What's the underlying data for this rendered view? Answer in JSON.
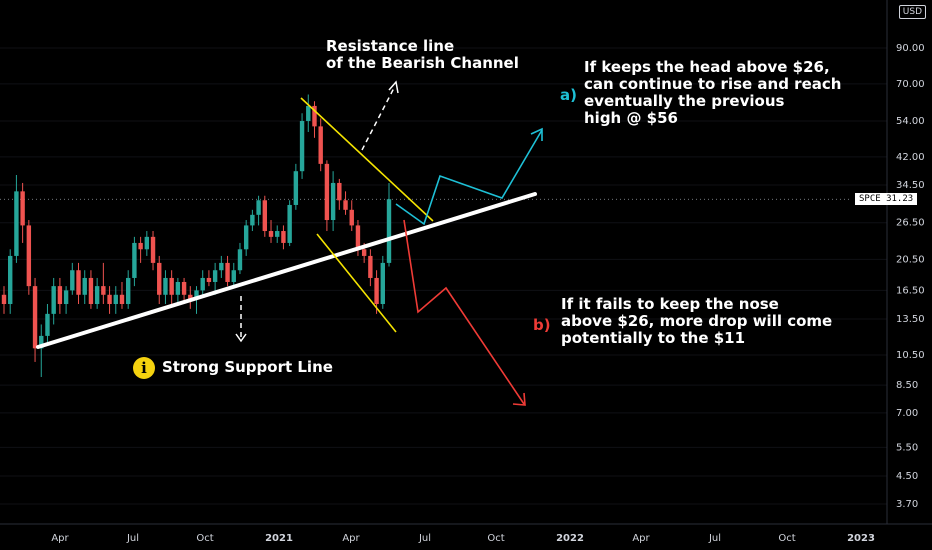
{
  "chart_data": {
    "type": "candlestick",
    "ticker": "SPCE",
    "last_price": "31.23",
    "currency": "USD",
    "price_scale": "log",
    "y_ticks": [
      "90.00",
      "70.00",
      "54.00",
      "42.00",
      "34.50",
      "26.50",
      "20.50",
      "16.50",
      "13.50",
      "10.50",
      "8.50",
      "7.00",
      "5.50",
      "4.50",
      "3.70"
    ],
    "x_ticks": [
      "Apr",
      "Jul",
      "Oct",
      "2021",
      "Apr",
      "Jul",
      "Oct",
      "2022",
      "Apr",
      "Jul",
      "Oct",
      "2023"
    ],
    "candles": [
      {
        "o": 16,
        "h": 17,
        "l": 14,
        "c": 15
      },
      {
        "o": 15,
        "h": 22,
        "l": 14,
        "c": 21
      },
      {
        "o": 21,
        "h": 37,
        "l": 20,
        "c": 33
      },
      {
        "o": 33,
        "h": 35,
        "l": 23,
        "c": 26
      },
      {
        "o": 26,
        "h": 27,
        "l": 16,
        "c": 17
      },
      {
        "o": 17,
        "h": 18,
        "l": 10,
        "c": 11
      },
      {
        "o": 11,
        "h": 13,
        "l": 9,
        "c": 12
      },
      {
        "o": 12,
        "h": 15,
        "l": 11.5,
        "c": 14
      },
      {
        "o": 14,
        "h": 18,
        "l": 13,
        "c": 17
      },
      {
        "o": 17,
        "h": 18,
        "l": 14,
        "c": 15
      },
      {
        "o": 15,
        "h": 17,
        "l": 14,
        "c": 16.5
      },
      {
        "o": 16.5,
        "h": 20,
        "l": 16,
        "c": 19
      },
      {
        "o": 19,
        "h": 20,
        "l": 15,
        "c": 16
      },
      {
        "o": 16,
        "h": 19,
        "l": 15,
        "c": 18
      },
      {
        "o": 18,
        "h": 19,
        "l": 14.5,
        "c": 15
      },
      {
        "o": 15,
        "h": 18,
        "l": 14.5,
        "c": 17
      },
      {
        "o": 17,
        "h": 20,
        "l": 15,
        "c": 16
      },
      {
        "o": 16,
        "h": 17,
        "l": 14,
        "c": 15
      },
      {
        "o": 15,
        "h": 17,
        "l": 14,
        "c": 16
      },
      {
        "o": 16,
        "h": 17.5,
        "l": 14.5,
        "c": 15
      },
      {
        "o": 15,
        "h": 19,
        "l": 14.5,
        "c": 18
      },
      {
        "o": 18,
        "h": 24,
        "l": 17,
        "c": 23
      },
      {
        "o": 23,
        "h": 24,
        "l": 20,
        "c": 22
      },
      {
        "o": 22,
        "h": 25,
        "l": 21,
        "c": 24
      },
      {
        "o": 24,
        "h": 25,
        "l": 19,
        "c": 20
      },
      {
        "o": 20,
        "h": 21,
        "l": 15,
        "c": 16
      },
      {
        "o": 16,
        "h": 19,
        "l": 15,
        "c": 18
      },
      {
        "o": 18,
        "h": 19,
        "l": 15,
        "c": 16
      },
      {
        "o": 16,
        "h": 18,
        "l": 15,
        "c": 17.5
      },
      {
        "o": 17.5,
        "h": 18,
        "l": 15,
        "c": 16
      },
      {
        "o": 16,
        "h": 17,
        "l": 14.5,
        "c": 15.5
      },
      {
        "o": 15.5,
        "h": 17,
        "l": 14,
        "c": 16.5
      },
      {
        "o": 16.5,
        "h": 19,
        "l": 16,
        "c": 18
      },
      {
        "o": 18,
        "h": 19,
        "l": 17,
        "c": 17.5
      },
      {
        "o": 17.5,
        "h": 20,
        "l": 16,
        "c": 19
      },
      {
        "o": 19,
        "h": 21,
        "l": 18,
        "c": 20
      },
      {
        "o": 20,
        "h": 21,
        "l": 17,
        "c": 17.5
      },
      {
        "o": 17.5,
        "h": 20,
        "l": 17,
        "c": 19
      },
      {
        "o": 19,
        "h": 23,
        "l": 18.5,
        "c": 22
      },
      {
        "o": 22,
        "h": 27,
        "l": 21,
        "c": 26
      },
      {
        "o": 26,
        "h": 29,
        "l": 25,
        "c": 28
      },
      {
        "o": 28,
        "h": 32,
        "l": 26,
        "c": 31
      },
      {
        "o": 31,
        "h": 32,
        "l": 24,
        "c": 25
      },
      {
        "o": 25,
        "h": 27,
        "l": 23,
        "c": 24
      },
      {
        "o": 24,
        "h": 26,
        "l": 23,
        "c": 25
      },
      {
        "o": 25,
        "h": 26,
        "l": 22,
        "c": 23
      },
      {
        "o": 23,
        "h": 31,
        "l": 22.5,
        "c": 30
      },
      {
        "o": 30,
        "h": 40,
        "l": 29,
        "c": 38
      },
      {
        "o": 38,
        "h": 57,
        "l": 36,
        "c": 54
      },
      {
        "o": 54,
        "h": 65,
        "l": 50,
        "c": 60
      },
      {
        "o": 60,
        "h": 62,
        "l": 48,
        "c": 52
      },
      {
        "o": 52,
        "h": 55,
        "l": 38,
        "c": 40
      },
      {
        "o": 40,
        "h": 41,
        "l": 25,
        "c": 27
      },
      {
        "o": 27,
        "h": 38,
        "l": 25,
        "c": 35
      },
      {
        "o": 35,
        "h": 36,
        "l": 29,
        "c": 31
      },
      {
        "o": 31,
        "h": 33,
        "l": 28,
        "c": 29
      },
      {
        "o": 29,
        "h": 31,
        "l": 25,
        "c": 26
      },
      {
        "o": 26,
        "h": 27,
        "l": 21,
        "c": 22
      },
      {
        "o": 22,
        "h": 23,
        "l": 20,
        "c": 21
      },
      {
        "o": 21,
        "h": 22,
        "l": 17,
        "c": 18
      },
      {
        "o": 18,
        "h": 19,
        "l": 14,
        "c": 15
      },
      {
        "o": 15,
        "h": 21,
        "l": 14.5,
        "c": 20
      },
      {
        "o": 20,
        "h": 35,
        "l": 19.5,
        "c": 31.23
      }
    ]
  },
  "header": {
    "currency_badge": "USD",
    "price_tag": "SPCE  31.23"
  },
  "annotations": {
    "resistance": "Resistance line\nof the Bearish Channel",
    "scenario_a_label": "a)",
    "scenario_a": "If keeps the head above $26,\ncan continue to rise and reach\neventually the previous\n    high @ $56",
    "scenario_b_label": "b)",
    "scenario_b": "If it fails to keep the nose\nabove $26, more drop will come\npotentially to the $11",
    "support": "Strong Support Line",
    "info_icon": "i"
  },
  "colors": {
    "up": "#26a69a",
    "down": "#ef5350",
    "support": "#ffffff",
    "channel": "#f5e400",
    "scenario_a": "#1ec0d6",
    "scenario_b": "#ef3b36"
  }
}
